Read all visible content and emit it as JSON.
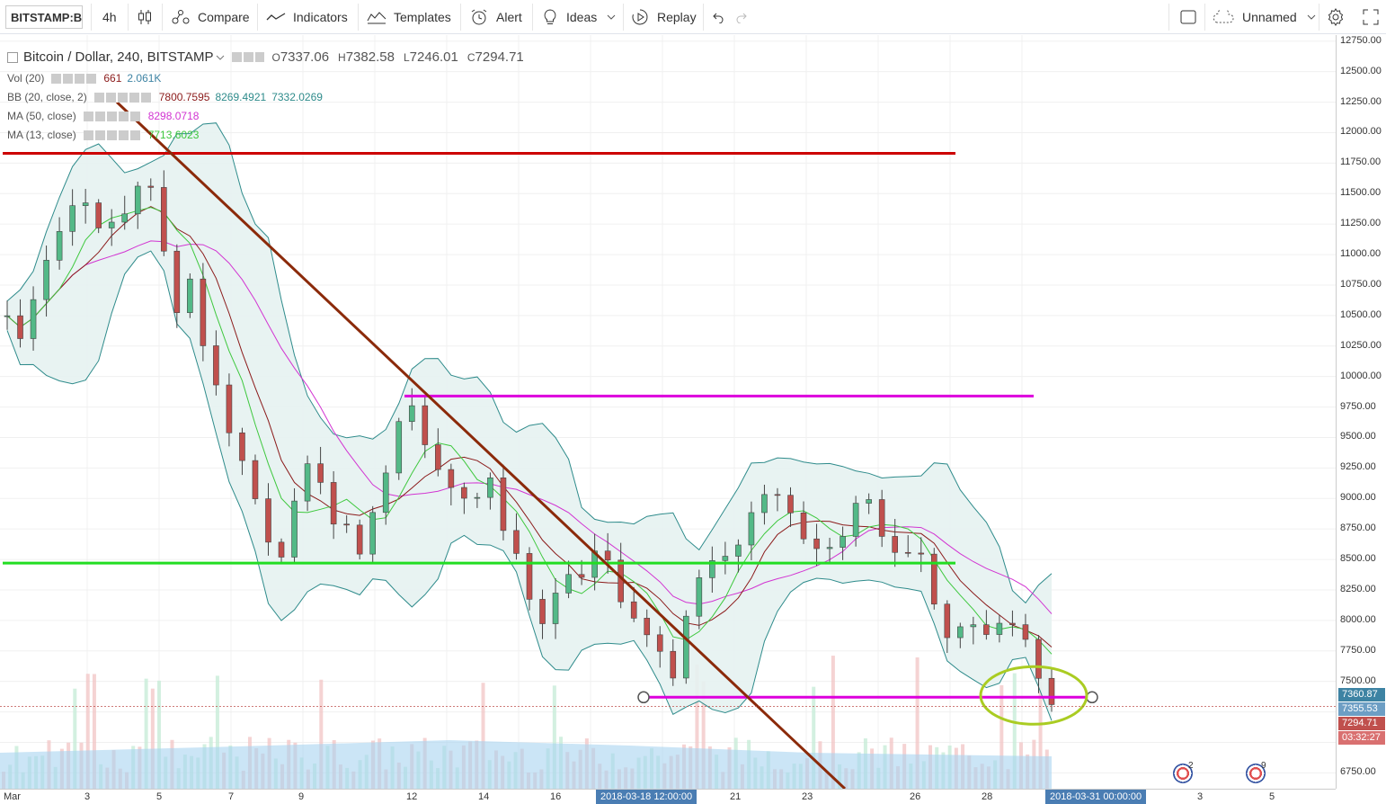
{
  "toolbar": {
    "symbol": "BITSTAMP:B",
    "interval": "4h",
    "compare": "Compare",
    "indicators": "Indicators",
    "templates": "Templates",
    "alert": "Alert",
    "ideas": "Ideas",
    "replay": "Replay",
    "layout_name": "Unnamed"
  },
  "legend": {
    "title": "Bitcoin / Dollar, 240, BITSTAMP",
    "o_label": "O",
    "o": "7337.06",
    "h_label": "H",
    "h": "7382.58",
    "l_label": "L",
    "l": "7246.01",
    "c_label": "C",
    "c": "7294.71",
    "vol_label": "Vol (20)",
    "vol_v1": "661",
    "vol_v2": "2.061K",
    "bb_label": "BB (20, close, 2)",
    "bb_v1": "7800.7595",
    "bb_v2": "8269.4921",
    "bb_v3": "7332.0269",
    "ma50_label": "MA (50, close)",
    "ma50_v": "8298.0718",
    "ma13_label": "MA (13, close)",
    "ma13_v": "7713.6023"
  },
  "colors": {
    "up": "#53b987",
    "down": "#c0504d",
    "bb_fill": "#e6f2f1",
    "bb_line": "#2e8b8b",
    "ma50": "#d235d2",
    "ma13": "#3ec83e",
    "bb_basis": "#8b1a1a",
    "resistance_red": "#cc0000",
    "support_green": "#22dd22",
    "level_magenta": "#dd00dd",
    "trendline": "#8b2a0a",
    "ellipse": "#aacc22",
    "volume": "#a8d4f0"
  },
  "chart_data": {
    "type": "candlestick",
    "symbol": "Bitcoin / Dollar",
    "ylim": [
      6620,
      12800
    ],
    "x_tick_labels": [
      "Mar",
      "3",
      "5",
      "7",
      "9",
      "12",
      "14",
      "16",
      "21",
      "23",
      "26",
      "28",
      "3",
      "5"
    ],
    "x_highlight_labels": [
      "2018-03-18 12:00:00",
      "2018-03-31 00:00:00"
    ],
    "y_ticks": [
      "12750.00",
      "12500.00",
      "12250.00",
      "12000.00",
      "11750.00",
      "11500.00",
      "11250.00",
      "11000.00",
      "10750.00",
      "10500.00",
      "10250.00",
      "10000.00",
      "9750.00",
      "9500.00",
      "9250.00",
      "9000.00",
      "8750.00",
      "8500.00",
      "8250.00",
      "8000.00",
      "7750.00",
      "7500.00",
      "6750.00"
    ],
    "y_labels": [
      {
        "text": "7360.87",
        "color": "#3d83a3"
      },
      {
        "text": "7355.53",
        "color": "#6d9ec4"
      },
      {
        "text": "7294.71",
        "color": "#c0504d"
      },
      {
        "text": "03:32:27",
        "color": "#d97070"
      }
    ],
    "horizontal_levels": [
      11830,
      9840,
      8470,
      7370
    ],
    "trendline": {
      "start": 12250,
      "end": 6620
    },
    "price_path": [
      10500,
      10300,
      10700,
      11000,
      11200,
      11400,
      11500,
      11150,
      11250,
      11350,
      11600,
      11500,
      11000,
      10600,
      10800,
      10300,
      9900,
      9600,
      9300,
      9000,
      8700,
      8600,
      8900,
      9200,
      9200,
      8800,
      8700,
      8600,
      8900,
      9200,
      9600,
      9800,
      9500,
      9150,
      9100,
      9050,
      9000,
      9200,
      8800,
      8500,
      8200,
      8000,
      8300,
      8300,
      8400,
      8500,
      8500,
      8200,
      8000,
      7900,
      7700,
      7500,
      8100,
      8400,
      8500,
      8600,
      8700,
      8900,
      9000,
      9000,
      8800,
      8700,
      8600,
      8600,
      8700,
      8900,
      9000,
      8700,
      8600,
      8600,
      8500,
      8200,
      7900,
      7900,
      7900,
      7800,
      7900,
      7900,
      7800,
      7500,
      7300
    ]
  },
  "corner_badges": [
    {
      "text": "2"
    },
    {
      "text": "9"
    }
  ]
}
